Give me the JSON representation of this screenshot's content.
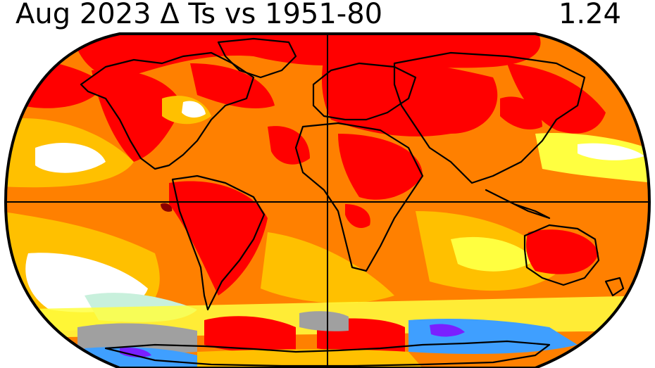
{
  "header": {
    "title": "Aug 2023 Δ Ts vs 1951-80",
    "global_mean_anomaly": "1.24"
  },
  "map": {
    "projection": "Robinson",
    "variable": "Surface temperature anomaly",
    "baseline": "1951-80",
    "month": "Aug 2023",
    "palette": {
      "extreme_warm": "#8b0000",
      "very_warm": "#ff0000",
      "warm": "#ff8000",
      "moderate_warm": "#ffc000",
      "slight_warm": "#ffff40",
      "neutral": "#ffffff",
      "slight_cool": "#c8f0dc",
      "cool": "#3f9fff",
      "very_cool": "#1060ff",
      "extreme_cool": "#7a20ff",
      "missing": "#a0a0a0",
      "coastline": "#000000",
      "grid": "#000000"
    }
  }
}
